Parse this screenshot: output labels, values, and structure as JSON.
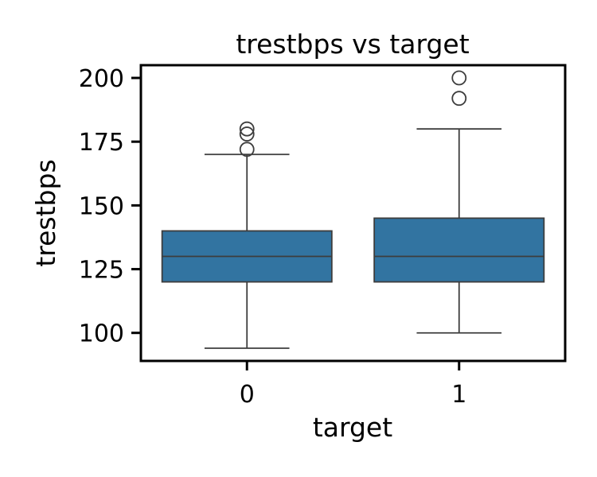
{
  "chart_data": {
    "type": "box",
    "title": "trestbps vs target",
    "xlabel": "target",
    "ylabel": "trestbps",
    "categories": [
      "0",
      "1"
    ],
    "ylim": [
      89,
      205
    ],
    "yticks": [
      100,
      125,
      150,
      175,
      200
    ],
    "grid": false,
    "legend": "none",
    "box_color": "#3274a1",
    "line_color": "#3d3d3d",
    "boxes": [
      {
        "category": "0",
        "whisker_low": 94,
        "q1": 120,
        "median": 130,
        "q3": 140,
        "whisker_high": 170,
        "outliers": [
          172,
          178,
          180
        ]
      },
      {
        "category": "1",
        "whisker_low": 100,
        "q1": 120,
        "median": 130,
        "q3": 145,
        "whisker_high": 180,
        "outliers": [
          192,
          200
        ]
      }
    ]
  }
}
